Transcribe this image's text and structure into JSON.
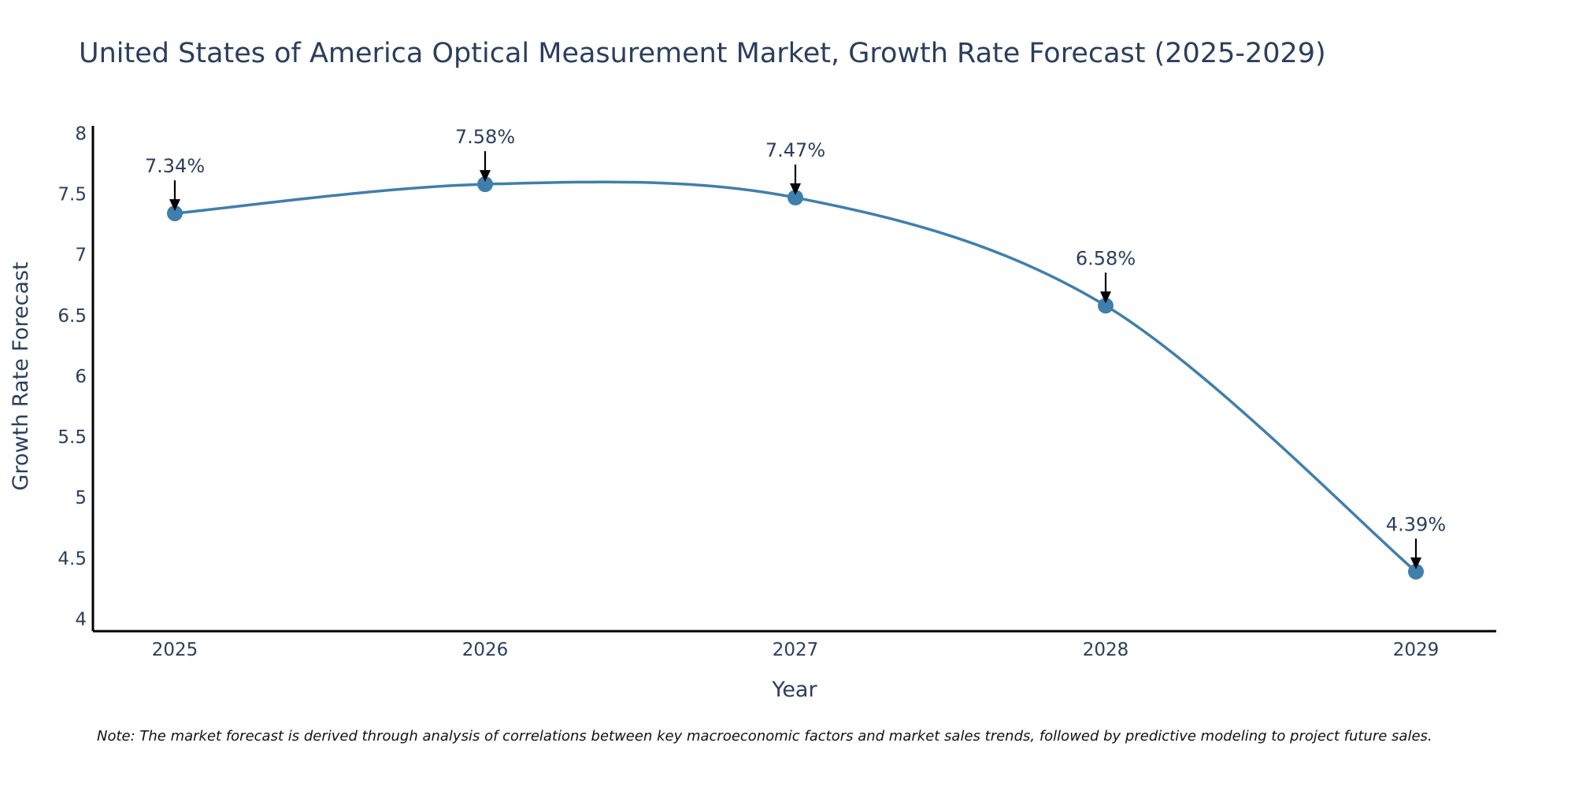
{
  "chart_data": {
    "type": "line",
    "title": "United States of America Optical Measurement Market, Growth Rate Forecast (2025-2029)",
    "xlabel": "Year",
    "ylabel": "Growth Rate Forecast",
    "categories": [
      "2025",
      "2026",
      "2027",
      "2028",
      "2029"
    ],
    "values": [
      7.34,
      7.58,
      7.47,
      6.58,
      4.39
    ],
    "data_labels": [
      "7.34%",
      "7.58%",
      "7.47%",
      "6.58%",
      "4.39%"
    ],
    "y_ticks": [
      "4",
      "4.5",
      "5",
      "5.5",
      "6",
      "6.5",
      "7",
      "7.5",
      "8"
    ],
    "ylim": [
      3.9,
      8.06
    ],
    "grid": false,
    "line_shape": "spline",
    "line_color": "#3f7fad",
    "marker_color": "#3f7fad",
    "annotation_arrow_color": "#000000",
    "note": "Note: The market forecast is derived through analysis of correlations between key macroeconomic factors and market sales trends, followed by predictive modeling to project future sales."
  }
}
